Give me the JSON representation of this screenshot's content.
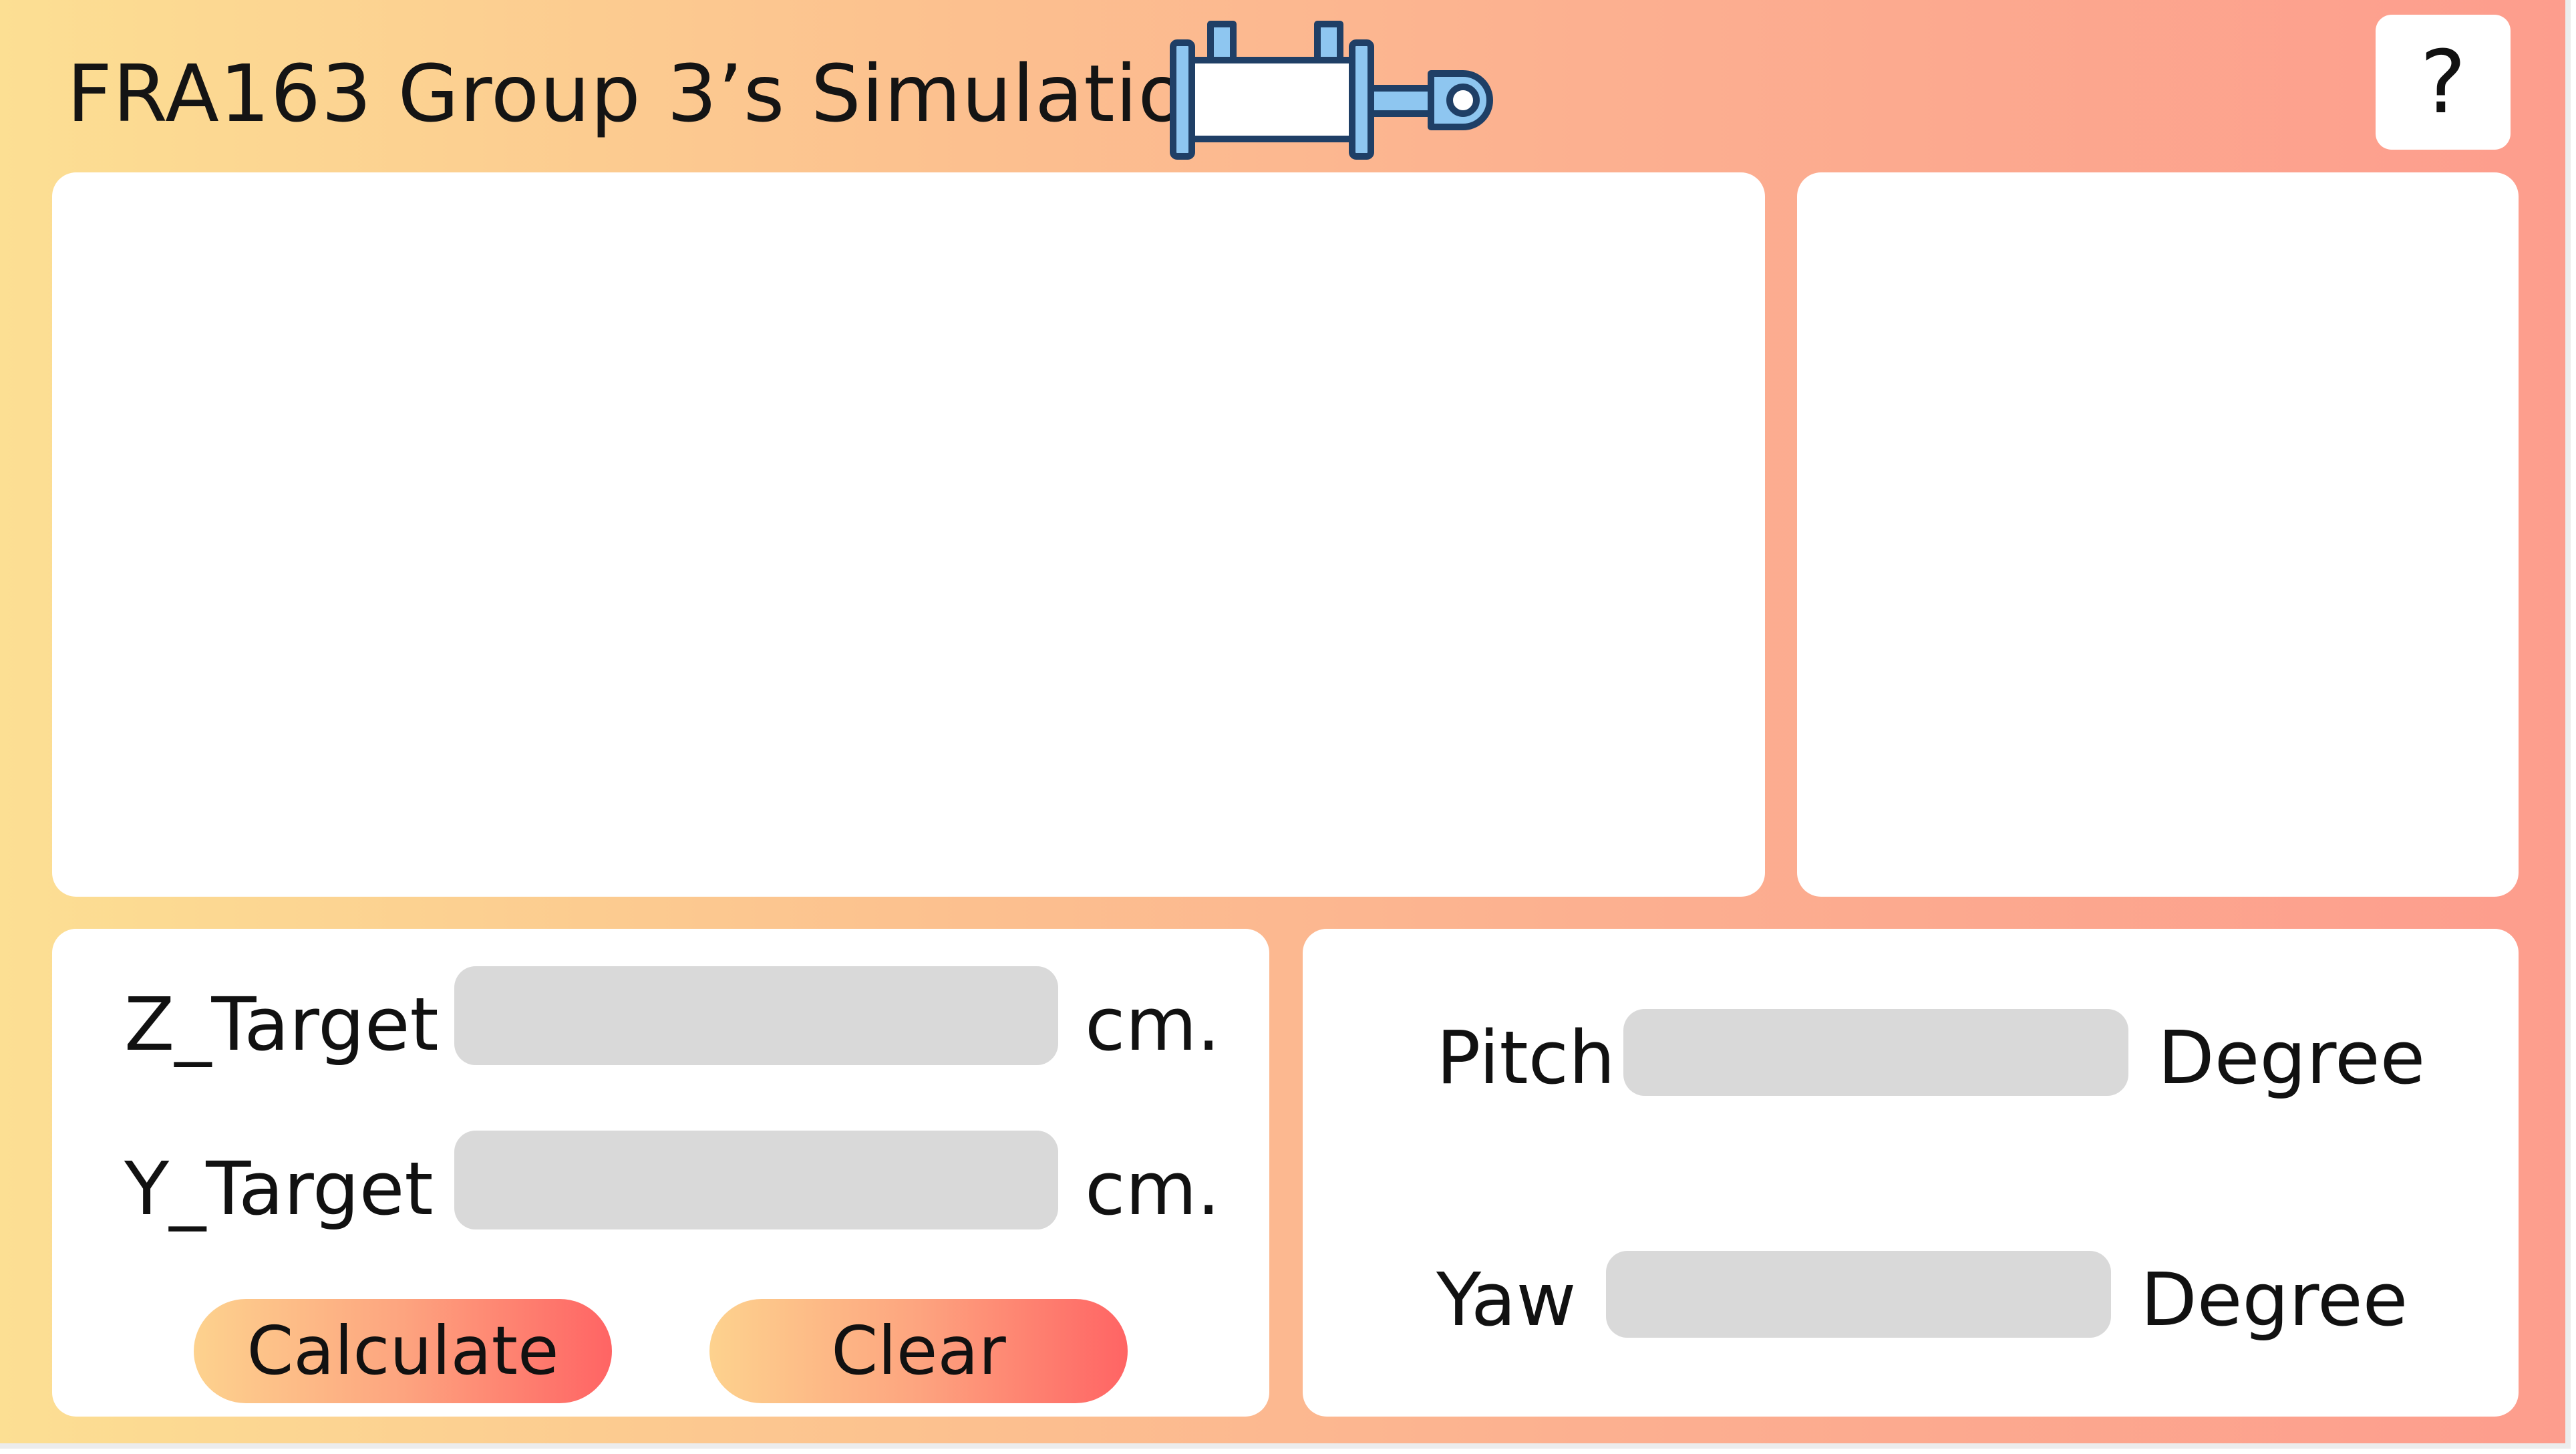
{
  "header": {
    "title": "FRA163 Group 3’s Simulation",
    "logo_icon": "hydraulic-cylinder-icon",
    "help_label": "?"
  },
  "target": {
    "z_label": "Z_Target",
    "z_value": "",
    "z_unit": "cm.",
    "y_label": "Y_Target",
    "y_value": "",
    "y_unit": "cm.",
    "calculate_label": "Calculate",
    "clear_label": "Clear"
  },
  "result": {
    "pitch_label": "Pitch",
    "pitch_value": "",
    "pitch_unit": "Degree",
    "yaw_label": "Yaw",
    "yaw_value": "",
    "yaw_unit": "Degree"
  },
  "colors": {
    "background_start": "#fcdf93",
    "background_end": "#fd9d8d",
    "panel": "#ffffff",
    "field": "#d9d9d9",
    "button_start": "#fdd28e",
    "button_end": "#ff6464",
    "icon_fill": "#8ec6f0",
    "icon_stroke": "#1f3f66"
  }
}
